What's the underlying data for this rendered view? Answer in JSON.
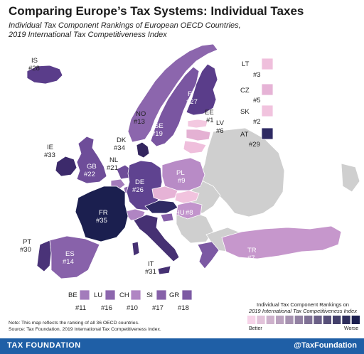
{
  "header": {
    "title": "Comparing Europe’s Tax Systems: Individual Taxes",
    "subtitle_line1": "Individual Tax Component Rankings of European OECD Countries,",
    "subtitle_line2": "2019 International Tax Competitiveness Index"
  },
  "countries": [
    {
      "code": "IS",
      "rank": "#28",
      "color": "#5a3d8a"
    },
    {
      "code": "NO",
      "rank": "#13",
      "color": "#8c66ad"
    },
    {
      "code": "SE",
      "rank": "#19",
      "color": "#7a56a1"
    },
    {
      "code": "FI",
      "rank": "#27",
      "color": "#5a3d8a"
    },
    {
      "code": "EE",
      "rank": "#1",
      "color": "#f3c8e0"
    },
    {
      "code": "LV",
      "rank": "#6",
      "color": "#e4b1d3"
    },
    {
      "code": "IE",
      "rank": "#33",
      "color": "#3c2a6b"
    },
    {
      "code": "GB",
      "rank": "#22",
      "color": "#6e4d99"
    },
    {
      "code": "DK",
      "rank": "#34",
      "color": "#34265f"
    },
    {
      "code": "NL",
      "rank": "#21",
      "color": "#6e4d99"
    },
    {
      "code": "DE",
      "rank": "#26",
      "color": "#5f4390"
    },
    {
      "code": "PL",
      "rank": "#9",
      "color": "#b88bc6"
    },
    {
      "code": "HU",
      "rank": "#8",
      "color": "#c294cc"
    },
    {
      "code": "FR",
      "rank": "#35",
      "color": "#1b1f4f"
    },
    {
      "code": "PT",
      "rank": "#30",
      "color": "#4a3378"
    },
    {
      "code": "ES",
      "rank": "#14",
      "color": "#8862aa"
    },
    {
      "code": "IT",
      "rank": "#31",
      "color": "#463173"
    },
    {
      "code": "TR",
      "rank": "#7",
      "color": "#c697cc"
    }
  ],
  "side_legend": [
    {
      "code": "LT",
      "rank": "#3",
      "color": "#efbfdc"
    },
    {
      "code": "CZ",
      "rank": "#5",
      "color": "#e6b3d6"
    },
    {
      "code": "SK",
      "rank": "#2",
      "color": "#f1c3de"
    },
    {
      "code": "AT",
      "rank": "#29",
      "color": "#2e2a63"
    }
  ],
  "bottom_legend": [
    {
      "code": "BE",
      "rank": "#11",
      "color": "#a37bbb"
    },
    {
      "code": "LU",
      "rank": "#16",
      "color": "#8c66ad"
    },
    {
      "code": "CH",
      "rank": "#10",
      "color": "#b085c3"
    },
    {
      "code": "SI",
      "rank": "#17",
      "color": "#8660a9"
    },
    {
      "code": "GR",
      "rank": "#18",
      "color": "#7c59a3"
    }
  ],
  "colors": {
    "non_oecd": "#cfcfcf",
    "footer_bg": "#1f5fa6",
    "scale_better": "#f6d3e8",
    "scale_worse": "#1b1f4f"
  },
  "scale_legend": {
    "title_line1": "Individual Tax Component Rankings on",
    "title_line2": "2019 International Tax Competitiveness Index",
    "better": "Better",
    "worse": "Worse",
    "steps": 12
  },
  "notes": {
    "line1": "Note: This map reflects the ranking of all 36 OECD countries.",
    "line2": "Source: Tax Foundation, 2019 International Tax Competitiveness Index."
  },
  "footer": {
    "left": "TAX FOUNDATION",
    "right": "@TaxFoundation"
  }
}
